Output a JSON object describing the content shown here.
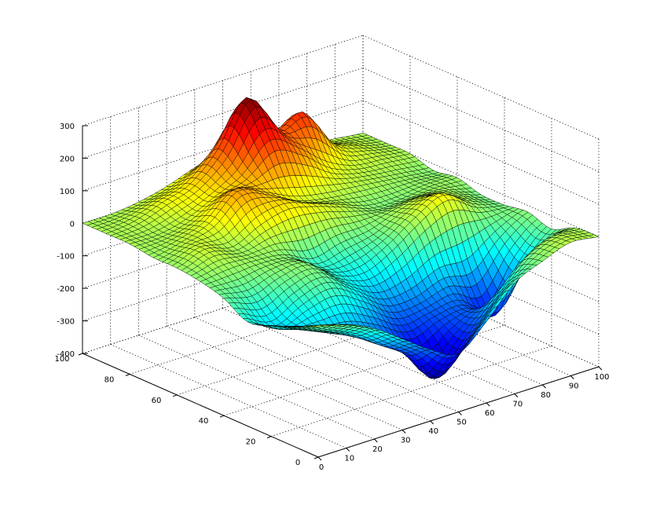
{
  "chart_data": {
    "type": "surface",
    "title": "",
    "xlabel": "",
    "ylabel": "",
    "zlabel": "",
    "colormap": "jet",
    "grid": true,
    "x": {
      "range": [
        0,
        100
      ],
      "ticks": [
        0,
        10,
        20,
        30,
        40,
        50,
        60,
        70,
        80,
        90,
        100
      ],
      "tick_labels": [
        "0",
        "10",
        "20",
        "30",
        "40",
        "50",
        "60",
        "70",
        "80",
        "90",
        "100"
      ]
    },
    "y": {
      "range": [
        0,
        100
      ],
      "ticks": [
        0,
        20,
        40,
        60,
        80,
        100
      ],
      "tick_labels": [
        "0",
        "20",
        "40",
        "60",
        "80",
        "100"
      ]
    },
    "z": {
      "range": [
        -400,
        300
      ],
      "ticks": [
        -400,
        -300,
        -200,
        -100,
        0,
        100,
        200,
        300
      ],
      "tick_labels": [
        "-400",
        "-300",
        "-200",
        "-100",
        "0",
        "100",
        "200",
        "300"
      ]
    },
    "surface": {
      "grid_x": [
        0,
        10,
        20,
        30,
        40,
        50,
        60,
        70,
        80,
        90,
        100
      ],
      "grid_y": [
        0,
        10,
        20,
        30,
        40,
        50,
        60,
        70,
        80,
        90,
        100
      ],
      "z": [
        [
          0,
          -20,
          -60,
          -120,
          -180,
          -220,
          -150,
          -60,
          -20,
          10,
          0
        ],
        [
          -30,
          -70,
          -110,
          -170,
          -230,
          -330,
          -240,
          -150,
          -60,
          -10,
          -5
        ],
        [
          -60,
          -100,
          -130,
          -150,
          -190,
          -240,
          -210,
          -200,
          -250,
          -120,
          -40
        ],
        [
          -80,
          -120,
          -80,
          -60,
          -110,
          -170,
          -170,
          -140,
          -150,
          -70,
          -20
        ],
        [
          -40,
          -60,
          -30,
          -20,
          -80,
          -100,
          -60,
          0,
          40,
          -10,
          -30
        ],
        [
          -20,
          -10,
          -10,
          -20,
          -60,
          -40,
          -30,
          0,
          20,
          0,
          -30
        ],
        [
          -10,
          20,
          0,
          40,
          60,
          40,
          10,
          -20,
          -20,
          -10,
          -10
        ],
        [
          -10,
          10,
          40,
          110,
          80,
          40,
          20,
          10,
          0,
          -10,
          -20
        ],
        [
          0,
          0,
          20,
          60,
          100,
          180,
          130,
          60,
          20,
          10,
          0
        ],
        [
          0,
          10,
          40,
          70,
          150,
          280,
          150,
          180,
          60,
          20,
          0
        ],
        [
          0,
          0,
          10,
          30,
          60,
          80,
          60,
          40,
          20,
          10,
          0
        ]
      ]
    }
  }
}
